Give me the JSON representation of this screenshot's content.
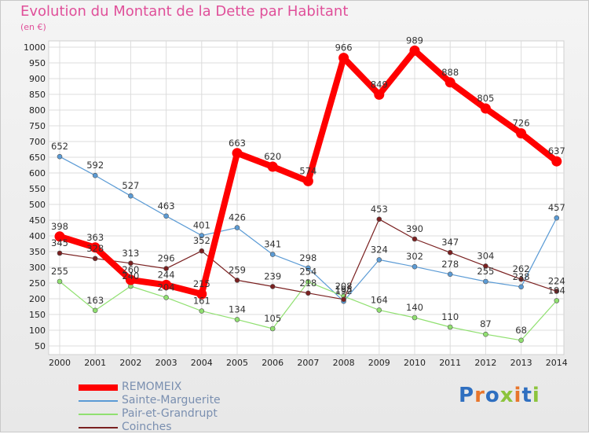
{
  "header": {
    "title": "Evolution du Montant de la Dette par Habitant",
    "unit": "(en €)"
  },
  "logo": {
    "text": "Proxiti",
    "colors": [
      "#2f6fc0",
      "#e8762c",
      "#2f6fc0",
      "#8cc43c",
      "#e8762c",
      "#2f6fc0",
      "#8cc43c"
    ]
  },
  "chart_data": {
    "type": "line",
    "title": "Evolution du Montant de la Dette par Habitant",
    "ylabel": "(en €)",
    "xlabel": "",
    "x": [
      "2000",
      "2001",
      "2002",
      "2003",
      "2004",
      "2005",
      "2006",
      "2007",
      "2008",
      "2009",
      "2010",
      "2011",
      "2012",
      "2013",
      "2014"
    ],
    "ylim": [
      50,
      1000
    ],
    "yticks": [
      "50",
      "100",
      "150",
      "200",
      "250",
      "300",
      "350",
      "400",
      "450",
      "500",
      "550",
      "600",
      "650",
      "700",
      "750",
      "800",
      "850",
      "900",
      "950",
      "1000"
    ],
    "grid": true,
    "legend_position": "bottom-left",
    "series": [
      {
        "name": "REMOMEIX",
        "color": "#ff0000",
        "values": [
          398,
          363,
          260,
          244,
          215,
          663,
          620,
          574,
          966,
          849,
          989,
          888,
          805,
          726,
          637
        ]
      },
      {
        "name": "Sainte-Marguerite",
        "color": "#5b9bd5",
        "values": [
          652,
          592,
          527,
          463,
          401,
          426,
          341,
          298,
          192,
          324,
          302,
          278,
          255,
          238,
          457
        ]
      },
      {
        "name": "Pair-et-Grandrupt",
        "color": "#90e070",
        "values": [
          255,
          163,
          240,
          204,
          161,
          134,
          105,
          254,
          208,
          164,
          140,
          110,
          87,
          68,
          194
        ]
      },
      {
        "name": "Coinches",
        "color": "#7a2020",
        "values": [
          345,
          328,
          313,
          296,
          352,
          259,
          239,
          218,
          198,
          453,
          390,
          347,
          304,
          262,
          224
        ]
      }
    ],
    "data_labels": [
      [
        "398",
        "363",
        "260",
        "244",
        "215",
        "663",
        "620",
        "574",
        "966",
        "849",
        "989",
        "888",
        "805",
        "726",
        "637"
      ],
      [
        "652",
        "592",
        "527",
        "463",
        "401",
        "426",
        "341",
        "298",
        "192",
        "324",
        "302",
        "278",
        "255",
        "238",
        "457"
      ],
      [
        "255",
        "163",
        "240",
        "204",
        "161",
        "134",
        "105",
        "254",
        "208",
        "164",
        "140",
        "110",
        "87",
        "68",
        "194"
      ],
      [
        "345",
        "328",
        "313",
        "296",
        "352",
        "259",
        "239",
        "218",
        "198",
        "453",
        "390",
        "347",
        "304",
        "262",
        "224"
      ]
    ]
  }
}
